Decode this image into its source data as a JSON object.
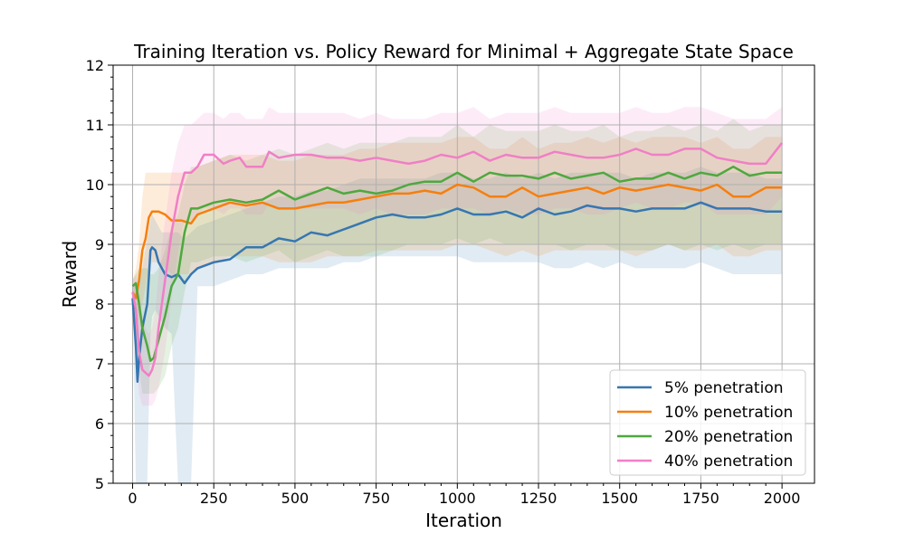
{
  "chart_data": {
    "type": "line",
    "title": "Training Iteration vs. Policy Reward for Minimal + Aggregate State Space",
    "xlabel": "Iteration",
    "ylabel": "Reward",
    "xlim": [
      -60,
      2100
    ],
    "ylim": [
      5,
      12
    ],
    "xticks": [
      0,
      250,
      500,
      750,
      1000,
      1250,
      1500,
      1750,
      2000
    ],
    "yticks": [
      5,
      6,
      7,
      8,
      9,
      10,
      11,
      12
    ],
    "grid": true,
    "legend_position": "lower-right",
    "series": [
      {
        "name": "5% penetration",
        "color": "#3776b0",
        "x": [
          0,
          10,
          15,
          20,
          30,
          45,
          55,
          60,
          70,
          80,
          90,
          100,
          120,
          140,
          160,
          180,
          200,
          250,
          300,
          350,
          400,
          450,
          500,
          550,
          600,
          650,
          700,
          750,
          800,
          850,
          900,
          950,
          1000,
          1050,
          1100,
          1150,
          1200,
          1250,
          1300,
          1350,
          1400,
          1450,
          1500,
          1550,
          1600,
          1650,
          1700,
          1750,
          1800,
          1850,
          1900,
          1950,
          2000
        ],
        "y": [
          8.1,
          7.3,
          6.7,
          7.1,
          7.6,
          8.0,
          8.9,
          8.95,
          8.9,
          8.7,
          8.6,
          8.5,
          8.45,
          8.5,
          8.35,
          8.5,
          8.6,
          8.7,
          8.75,
          8.95,
          8.95,
          9.1,
          9.05,
          9.2,
          9.15,
          9.25,
          9.35,
          9.45,
          9.5,
          9.45,
          9.45,
          9.5,
          9.6,
          9.5,
          9.5,
          9.55,
          9.45,
          9.6,
          9.5,
          9.55,
          9.65,
          9.6,
          9.6,
          9.55,
          9.6,
          9.6,
          9.6,
          9.7,
          9.6,
          9.6,
          9.6,
          9.55,
          9.55
        ],
        "band_lower": [
          8.1,
          5.0,
          5.0,
          5.0,
          5.0,
          5.0,
          7.5,
          7.8,
          7.9,
          7.8,
          7.7,
          7.6,
          7.5,
          5.0,
          5.0,
          5.0,
          8.3,
          8.3,
          8.4,
          8.5,
          8.5,
          8.6,
          8.6,
          8.6,
          8.6,
          8.7,
          8.7,
          8.8,
          8.8,
          8.8,
          8.8,
          8.8,
          8.8,
          8.7,
          8.7,
          8.7,
          8.7,
          8.7,
          8.6,
          8.6,
          8.7,
          8.6,
          8.7,
          8.6,
          8.6,
          8.6,
          8.6,
          8.7,
          8.6,
          8.5,
          8.5,
          8.5,
          8.5
        ],
        "band_upper": [
          8.3,
          8.3,
          8.3,
          8.4,
          8.6,
          9.1,
          9.4,
          9.5,
          9.4,
          9.3,
          9.2,
          9.2,
          9.2,
          9.2,
          9.1,
          9.2,
          9.3,
          9.4,
          9.5,
          9.6,
          9.7,
          9.8,
          9.8,
          9.9,
          9.9,
          10.0,
          10.1,
          10.1,
          10.1,
          10.1,
          10.1,
          10.2,
          10.2,
          10.1,
          10.1,
          10.2,
          10.1,
          10.2,
          10.1,
          10.2,
          10.2,
          10.2,
          10.2,
          10.1,
          10.2,
          10.2,
          10.2,
          10.3,
          10.2,
          10.2,
          10.2,
          10.1,
          10.1
        ]
      },
      {
        "name": "10% penetration",
        "color": "#f57f0e",
        "x": [
          0,
          10,
          20,
          30,
          40,
          50,
          60,
          80,
          100,
          120,
          150,
          180,
          200,
          250,
          300,
          350,
          400,
          450,
          500,
          550,
          600,
          650,
          700,
          750,
          800,
          850,
          900,
          950,
          1000,
          1050,
          1100,
          1150,
          1200,
          1250,
          1300,
          1350,
          1400,
          1450,
          1500,
          1550,
          1600,
          1650,
          1700,
          1750,
          1800,
          1850,
          1900,
          1950,
          2000
        ],
        "y": [
          8.2,
          8.1,
          8.4,
          8.9,
          9.1,
          9.45,
          9.55,
          9.55,
          9.5,
          9.4,
          9.4,
          9.35,
          9.5,
          9.6,
          9.7,
          9.65,
          9.7,
          9.6,
          9.6,
          9.65,
          9.7,
          9.7,
          9.75,
          9.8,
          9.85,
          9.85,
          9.9,
          9.85,
          10.0,
          9.95,
          9.8,
          9.8,
          9.95,
          9.8,
          9.85,
          9.9,
          9.95,
          9.85,
          9.95,
          9.9,
          9.95,
          10.0,
          9.95,
          9.9,
          10.0,
          9.8,
          9.8,
          9.95,
          9.95
        ],
        "band_lower": [
          8.0,
          7.5,
          7.8,
          8.0,
          8.3,
          8.6,
          8.7,
          8.7,
          8.6,
          8.5,
          8.5,
          8.5,
          8.6,
          8.7,
          8.8,
          8.8,
          8.8,
          8.7,
          8.7,
          8.7,
          8.8,
          8.8,
          8.8,
          8.9,
          8.9,
          8.9,
          8.9,
          8.9,
          9.0,
          9.0,
          8.9,
          8.8,
          8.9,
          8.8,
          8.9,
          8.9,
          8.9,
          8.9,
          8.9,
          8.8,
          8.9,
          9.0,
          8.9,
          8.9,
          9.0,
          8.8,
          8.8,
          8.9,
          8.9
        ],
        "band_upper": [
          8.4,
          8.6,
          9.0,
          9.8,
          10.2,
          10.2,
          10.2,
          10.2,
          10.2,
          10.2,
          10.2,
          10.2,
          10.3,
          10.4,
          10.5,
          10.5,
          10.5,
          10.4,
          10.4,
          10.5,
          10.5,
          10.5,
          10.6,
          10.6,
          10.7,
          10.7,
          10.7,
          10.7,
          10.8,
          10.8,
          10.6,
          10.6,
          10.8,
          10.6,
          10.7,
          10.7,
          10.8,
          10.7,
          10.8,
          10.7,
          10.8,
          10.8,
          10.8,
          10.7,
          10.8,
          10.6,
          10.6,
          10.8,
          10.8
        ]
      },
      {
        "name": "20% penetration",
        "color": "#4ea83e",
        "x": [
          0,
          10,
          20,
          30,
          45,
          55,
          65,
          80,
          100,
          120,
          140,
          160,
          180,
          200,
          250,
          300,
          350,
          400,
          450,
          500,
          550,
          600,
          650,
          700,
          750,
          800,
          850,
          900,
          950,
          1000,
          1050,
          1100,
          1150,
          1200,
          1250,
          1300,
          1350,
          1400,
          1450,
          1500,
          1550,
          1600,
          1650,
          1700,
          1750,
          1800,
          1850,
          1900,
          1950,
          2000
        ],
        "y": [
          8.3,
          8.35,
          8.0,
          7.6,
          7.3,
          7.05,
          7.1,
          7.4,
          7.8,
          8.3,
          8.5,
          9.2,
          9.6,
          9.6,
          9.7,
          9.75,
          9.7,
          9.75,
          9.9,
          9.75,
          9.85,
          9.95,
          9.85,
          9.9,
          9.85,
          9.9,
          10.0,
          10.05,
          10.05,
          10.2,
          10.05,
          10.2,
          10.15,
          10.15,
          10.1,
          10.2,
          10.1,
          10.15,
          10.2,
          10.05,
          10.1,
          10.1,
          10.2,
          10.1,
          10.2,
          10.15,
          10.3,
          10.15,
          10.2,
          10.2
        ],
        "band_lower": [
          8.1,
          7.5,
          6.9,
          6.5,
          6.5,
          6.5,
          6.5,
          6.6,
          6.8,
          7.3,
          7.6,
          8.2,
          8.7,
          8.7,
          8.8,
          8.8,
          8.7,
          8.8,
          8.9,
          8.7,
          8.8,
          8.9,
          8.8,
          8.8,
          8.8,
          8.9,
          9.0,
          9.0,
          9.0,
          9.1,
          9.0,
          9.1,
          9.0,
          9.0,
          9.0,
          9.0,
          8.9,
          9.0,
          9.0,
          8.9,
          8.9,
          8.9,
          9.0,
          8.9,
          9.0,
          8.9,
          9.0,
          8.9,
          9.0,
          9.0
        ],
        "band_upper": [
          8.4,
          8.5,
          8.6,
          8.6,
          8.6,
          8.5,
          8.5,
          8.6,
          8.9,
          9.3,
          9.5,
          10.0,
          10.3,
          10.3,
          10.4,
          10.5,
          10.4,
          10.5,
          10.6,
          10.5,
          10.6,
          10.7,
          10.6,
          10.7,
          10.7,
          10.7,
          10.8,
          10.8,
          10.8,
          11.0,
          10.8,
          11.0,
          10.9,
          10.9,
          10.9,
          11.0,
          10.9,
          10.9,
          11.0,
          10.8,
          10.9,
          10.9,
          11.0,
          10.9,
          11.0,
          10.9,
          11.1,
          10.9,
          11.0,
          11.0
        ]
      },
      {
        "name": "40% penetration",
        "color": "#f07fc6",
        "x": [
          0,
          10,
          20,
          30,
          40,
          50,
          60,
          70,
          80,
          100,
          120,
          140,
          160,
          180,
          200,
          220,
          250,
          280,
          300,
          330,
          350,
          400,
          420,
          450,
          500,
          550,
          600,
          650,
          700,
          750,
          800,
          850,
          900,
          950,
          1000,
          1050,
          1100,
          1150,
          1200,
          1250,
          1300,
          1350,
          1400,
          1450,
          1500,
          1550,
          1600,
          1650,
          1700,
          1750,
          1800,
          1850,
          1900,
          1950,
          2000
        ],
        "y": [
          8.2,
          7.9,
          7.2,
          6.9,
          6.85,
          6.8,
          6.9,
          7.1,
          7.6,
          8.4,
          9.2,
          9.8,
          10.2,
          10.2,
          10.3,
          10.5,
          10.5,
          10.35,
          10.4,
          10.45,
          10.3,
          10.3,
          10.55,
          10.45,
          10.5,
          10.5,
          10.45,
          10.45,
          10.4,
          10.45,
          10.4,
          10.35,
          10.4,
          10.5,
          10.45,
          10.55,
          10.4,
          10.5,
          10.45,
          10.45,
          10.55,
          10.5,
          10.45,
          10.45,
          10.5,
          10.6,
          10.5,
          10.5,
          10.6,
          10.6,
          10.45,
          10.4,
          10.35,
          10.35,
          10.7
        ],
        "band_lower": [
          8.0,
          7.3,
          6.5,
          6.3,
          6.3,
          6.3,
          6.3,
          6.4,
          6.6,
          7.2,
          8.1,
          8.9,
          9.4,
          9.4,
          9.5,
          9.6,
          9.6,
          9.5,
          9.6,
          9.6,
          9.5,
          9.5,
          9.7,
          9.6,
          9.6,
          9.6,
          9.6,
          9.6,
          9.5,
          9.6,
          9.5,
          9.5,
          9.5,
          9.6,
          9.6,
          9.6,
          9.5,
          9.6,
          9.5,
          9.5,
          9.6,
          9.6,
          9.5,
          9.5,
          9.6,
          9.7,
          9.6,
          9.6,
          9.7,
          9.7,
          9.5,
          9.5,
          9.5,
          9.5,
          9.8
        ],
        "band_upper": [
          8.4,
          8.5,
          8.2,
          7.8,
          7.6,
          7.5,
          7.6,
          7.9,
          8.5,
          9.4,
          10.2,
          10.7,
          11.0,
          11.0,
          11.1,
          11.2,
          11.2,
          11.1,
          11.2,
          11.2,
          11.1,
          11.1,
          11.3,
          11.2,
          11.2,
          11.2,
          11.2,
          11.2,
          11.1,
          11.2,
          11.1,
          11.1,
          11.1,
          11.2,
          11.2,
          11.3,
          11.1,
          11.2,
          11.2,
          11.2,
          11.3,
          11.2,
          11.2,
          11.2,
          11.2,
          11.3,
          11.2,
          11.2,
          11.3,
          11.3,
          11.2,
          11.1,
          11.1,
          11.1,
          11.3
        ]
      }
    ]
  }
}
